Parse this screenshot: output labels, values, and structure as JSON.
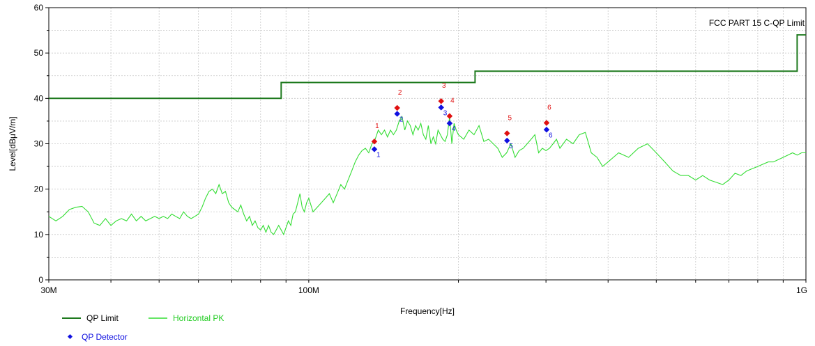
{
  "chart_data": {
    "type": "line",
    "xlabel": "Frequency[Hz]",
    "ylabel": "Level[dBμV/m]",
    "xscale": "log",
    "xlim": [
      30,
      1000
    ],
    "ylim": [
      0,
      60
    ],
    "yticks": [
      0,
      10,
      20,
      30,
      40,
      50,
      60
    ],
    "xticks": [
      {
        "value": 30,
        "label": "30M"
      },
      {
        "value": 100,
        "label": "100M"
      },
      {
        "value": 1000,
        "label": "1G"
      }
    ],
    "grid": true,
    "limit_annotation": "FCC PART 15 C-QP Limit",
    "colors": {
      "limit": "#1e7a1e",
      "pk": "#33dd33",
      "peak_marker": "#e01010",
      "qp_marker": "#1010e0",
      "grid": "#c8c8c8"
    },
    "series": [
      {
        "name": "QP Limit",
        "x": [
          30,
          88,
          88,
          216,
          216,
          960,
          960,
          1000
        ],
        "y": [
          40,
          40,
          43.5,
          43.5,
          46,
          46,
          54,
          54
        ]
      },
      {
        "name": "Horizontal PK",
        "x": [
          30,
          31,
          32,
          33,
          34,
          35,
          36,
          37,
          38,
          39,
          40,
          41,
          42,
          43,
          44,
          45,
          46,
          47,
          48,
          49,
          50,
          51,
          52,
          53,
          54,
          55,
          56,
          57,
          58,
          59,
          60,
          61,
          62,
          63,
          64,
          65,
          66,
          67,
          68,
          69,
          70,
          71,
          72,
          73,
          74,
          75,
          76,
          77,
          78,
          79,
          80,
          81,
          82,
          83,
          84,
          85,
          86,
          87,
          88,
          89,
          90,
          91,
          92,
          93,
          94,
          95,
          96,
          97,
          98,
          99,
          100,
          102,
          104,
          106,
          108,
          110,
          112,
          114,
          116,
          118,
          120,
          122,
          124,
          126,
          128,
          130,
          132,
          134,
          136,
          138,
          140,
          142,
          144,
          146,
          148,
          150,
          152,
          154,
          156,
          158,
          160,
          162,
          164,
          166,
          168,
          170,
          172,
          174,
          176,
          178,
          180,
          182,
          184,
          186,
          188,
          190,
          192,
          194,
          196,
          198,
          200,
          205,
          210,
          215,
          220,
          225,
          230,
          235,
          240,
          245,
          250,
          255,
          260,
          265,
          270,
          275,
          280,
          285,
          290,
          295,
          300,
          305,
          310,
          315,
          320,
          330,
          340,
          350,
          360,
          370,
          380,
          390,
          400,
          420,
          440,
          460,
          480,
          500,
          520,
          540,
          560,
          580,
          600,
          620,
          640,
          660,
          680,
          700,
          720,
          740,
          760,
          780,
          800,
          820,
          840,
          860,
          880,
          900,
          920,
          940,
          960,
          980,
          1000
        ],
        "y": [
          14,
          13,
          14,
          15.5,
          16,
          16.2,
          15,
          12.5,
          12,
          13.5,
          12,
          13,
          13.5,
          13,
          14.5,
          13,
          14,
          13,
          13.5,
          14,
          13.5,
          14,
          13.5,
          14.5,
          14,
          13.5,
          15,
          14,
          13.5,
          14,
          14.5,
          16,
          18,
          19.5,
          20,
          19,
          21,
          19,
          19.5,
          17,
          16,
          15.5,
          15,
          16.5,
          14.5,
          13,
          14,
          12,
          13,
          11.5,
          11,
          12,
          10.5,
          12,
          10.5,
          10,
          11,
          12,
          11,
          10,
          11.5,
          13,
          12,
          14.5,
          15,
          17,
          19,
          16,
          15,
          17,
          18,
          15,
          16,
          17,
          18,
          19,
          17,
          19,
          21,
          20,
          22,
          24,
          26,
          27.5,
          28.5,
          29,
          28,
          30,
          31,
          33,
          32,
          33,
          31.5,
          33,
          32,
          33,
          35,
          36,
          33,
          35,
          34,
          32,
          34,
          33,
          34.5,
          32,
          31,
          34,
          30,
          31.5,
          30,
          33,
          32,
          31,
          30.5,
          32,
          36,
          30,
          34.5,
          33,
          32,
          31,
          33,
          32,
          34,
          30.5,
          31,
          30,
          29,
          27,
          28,
          30,
          27,
          28.5,
          29,
          30,
          31,
          32,
          28,
          29,
          28.5,
          29,
          30,
          31,
          29,
          31,
          30,
          32,
          32.5,
          28,
          27,
          25,
          26,
          28,
          27,
          29,
          30,
          28,
          26,
          24,
          23,
          23,
          22,
          23,
          22,
          21.5,
          21,
          22,
          23.5,
          23,
          24,
          24.5,
          25,
          25.5,
          26,
          26,
          26.5,
          27,
          27.5,
          28,
          27.5,
          28,
          28
        ]
      },
      {
        "name": "QP Detector",
        "type": "scatter",
        "x": [
          135.5,
          150.6,
          184.6,
          192.0,
          250.5,
          300.8
        ],
        "y": [
          28.8,
          36.6,
          38.0,
          34.5,
          30.7,
          33.1
        ],
        "labels": [
          "1",
          "2",
          "3",
          "4",
          "5",
          "6"
        ]
      },
      {
        "type": "scatter",
        "x": [
          135.5,
          150.6,
          184.6,
          192.0,
          250.5,
          300.8
        ],
        "y": [
          30.5,
          37.9,
          39.4,
          36.1,
          32.3,
          34.6
        ],
        "labels": [
          "1",
          "2",
          "3",
          "4",
          "5",
          "6"
        ]
      }
    ],
    "legend": [
      "QP Limit",
      "Horizontal PK",
      "QP Detector"
    ],
    "legend_position": "bottom-left"
  }
}
